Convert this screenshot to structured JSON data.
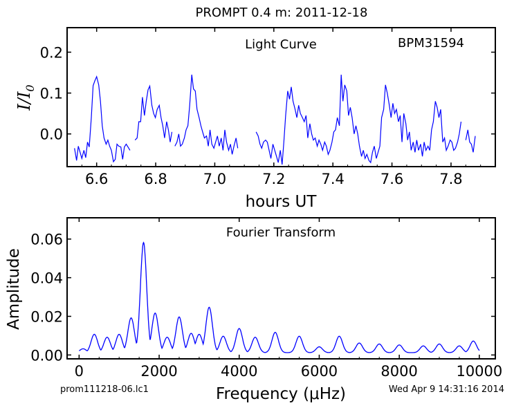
{
  "page": {
    "suptitle": "PROMPT 0.4 m:  2011-12-18",
    "footer_left": "prom111218-06.lc1",
    "footer_right": "Wed Apr  9 14:31:16 2014"
  },
  "colors": {
    "line": "#0000ff",
    "axes": "#000000",
    "background": "#ffffff"
  },
  "chart_data": [
    {
      "type": "line",
      "annotation": "Light Curve",
      "star": "BPM31594",
      "xlabel": "hours UT",
      "ylabel": "I/I₀",
      "xlim": [
        6.5,
        7.95
      ],
      "ylim": [
        -0.08,
        0.26
      ],
      "xticks": [
        6.6,
        6.8,
        7.0,
        7.2,
        7.4,
        7.6,
        7.8
      ],
      "xtick_labels": [
        "6.6",
        "6.8",
        "7.0",
        "7.2",
        "7.4",
        "7.6",
        "7.8"
      ],
      "yticks": [
        0.0,
        0.1,
        0.2
      ],
      "ytick_labels": [
        "0.0",
        "0.1",
        "0.2"
      ],
      "grid": false,
      "segments": [
        {
          "x": [
            6.525,
            6.532,
            6.538,
            6.544,
            6.55,
            6.557,
            6.563,
            6.569,
            6.575,
            6.582,
            6.588,
            6.594,
            6.6,
            6.607,
            6.613,
            6.619,
            6.625,
            6.632,
            6.638,
            6.644,
            6.65,
            6.657,
            6.663,
            6.669,
            6.675,
            6.682,
            6.688,
            6.694,
            6.7,
            6.707,
            6.713
          ],
          "y": [
            -0.035,
            -0.065,
            -0.03,
            -0.045,
            -0.06,
            -0.04,
            -0.058,
            -0.02,
            -0.032,
            0.04,
            0.118,
            0.13,
            0.14,
            0.12,
            0.08,
            0.02,
            -0.01,
            -0.025,
            -0.015,
            -0.03,
            -0.04,
            -0.068,
            -0.062,
            -0.025,
            -0.03,
            -0.032,
            -0.062,
            -0.032,
            -0.025,
            -0.033,
            -0.04
          ]
        },
        {
          "x": [
            6.73,
            6.737,
            6.743,
            6.749,
            6.755,
            6.762,
            6.768,
            6.774,
            6.78,
            6.787,
            6.793,
            6.799,
            6.805,
            6.812,
            6.818,
            6.824,
            6.83,
            6.837,
            6.843,
            6.849,
            6.855
          ],
          "y": [
            -0.015,
            -0.01,
            0.03,
            0.03,
            0.09,
            0.045,
            0.08,
            0.108,
            0.117,
            0.07,
            0.05,
            0.04,
            0.06,
            0.07,
            0.04,
            0.02,
            -0.01,
            0.03,
            0.01,
            -0.02,
            0.005
          ]
        },
        {
          "x": [
            6.865,
            6.872,
            6.878,
            6.884,
            6.89,
            6.897,
            6.903,
            6.909,
            6.915,
            6.922,
            6.928,
            6.934,
            6.94,
            6.947,
            6.953,
            6.959,
            6.965,
            6.972,
            6.978,
            6.984,
            6.99,
            6.997,
            7.003,
            7.009,
            7.015,
            7.022,
            7.028,
            7.034,
            7.04,
            7.047,
            7.053,
            7.059,
            7.065,
            7.072,
            7.078
          ],
          "y": [
            -0.03,
            -0.02,
            0.0,
            -0.03,
            -0.025,
            -0.01,
            0.01,
            0.02,
            0.07,
            0.145,
            0.11,
            0.105,
            0.06,
            0.04,
            0.02,
            0.005,
            -0.01,
            -0.005,
            -0.03,
            0.01,
            -0.025,
            -0.035,
            -0.02,
            -0.005,
            -0.03,
            -0.01,
            -0.04,
            0.01,
            -0.02,
            -0.04,
            -0.025,
            -0.05,
            -0.03,
            -0.01,
            -0.035
          ]
        },
        {
          "x": [
            7.14,
            7.147,
            7.153,
            7.159,
            7.165,
            7.172,
            7.178,
            7.184,
            7.19,
            7.197,
            7.203,
            7.209,
            7.215,
            7.222,
            7.228,
            7.234,
            7.24,
            7.247,
            7.253,
            7.259,
            7.265,
            7.272,
            7.278,
            7.284,
            7.29,
            7.297,
            7.303,
            7.309,
            7.315,
            7.322,
            7.328,
            7.334,
            7.34,
            7.347,
            7.353,
            7.359,
            7.365,
            7.372,
            7.378,
            7.384,
            7.39,
            7.397,
            7.403,
            7.409,
            7.415,
            7.422,
            7.428,
            7.434,
            7.44,
            7.447,
            7.453,
            7.459,
            7.465,
            7.472,
            7.478,
            7.484,
            7.49,
            7.497,
            7.503,
            7.509,
            7.515,
            7.522,
            7.528,
            7.534,
            7.54,
            7.547,
            7.553,
            7.559,
            7.565,
            7.572,
            7.578,
            7.584,
            7.59,
            7.597,
            7.603,
            7.609,
            7.615,
            7.622,
            7.628,
            7.634,
            7.64,
            7.647,
            7.653,
            7.659,
            7.665,
            7.672,
            7.678,
            7.684,
            7.69,
            7.697,
            7.703,
            7.709,
            7.715,
            7.722,
            7.728,
            7.734,
            7.74,
            7.747,
            7.753,
            7.759,
            7.765,
            7.772,
            7.778,
            7.784,
            7.79,
            7.797,
            7.803,
            7.809,
            7.815,
            7.822,
            7.828,
            7.834
          ],
          "y": [
            0.005,
            -0.005,
            -0.025,
            -0.035,
            -0.02,
            -0.015,
            -0.02,
            -0.04,
            -0.06,
            -0.025,
            -0.04,
            -0.055,
            -0.07,
            -0.04,
            -0.075,
            -0.02,
            0.045,
            0.105,
            0.085,
            0.115,
            0.08,
            0.06,
            0.04,
            0.07,
            0.05,
            0.04,
            0.03,
            0.045,
            -0.01,
            0.025,
            0.0,
            -0.015,
            -0.01,
            -0.03,
            -0.015,
            -0.025,
            -0.04,
            -0.02,
            -0.03,
            -0.05,
            -0.04,
            -0.02,
            0.005,
            0.01,
            0.04,
            0.02,
            0.145,
            0.08,
            0.12,
            0.105,
            0.045,
            0.065,
            0.04,
            0.0,
            0.02,
            0.0,
            -0.03,
            -0.055,
            -0.04,
            -0.06,
            -0.05,
            -0.065,
            -0.07,
            -0.045,
            -0.03,
            -0.06,
            -0.045,
            -0.03,
            0.04,
            0.06,
            0.12,
            0.1,
            0.075,
            0.04,
            0.075,
            0.05,
            0.06,
            0.03,
            0.045,
            -0.02,
            0.05,
            0.025,
            -0.015,
            0.005,
            -0.04,
            -0.02,
            -0.045,
            -0.015,
            -0.04,
            -0.025,
            -0.055,
            -0.02,
            -0.04,
            -0.03,
            -0.04,
            0.01,
            0.03,
            0.08,
            0.065,
            0.04,
            0.06,
            -0.02,
            -0.01,
            -0.04,
            -0.03,
            -0.015,
            -0.02,
            -0.04,
            -0.035,
            -0.02,
            0.0,
            0.03
          ]
        },
        {
          "x": [
            7.85,
            7.857,
            7.863,
            7.869,
            7.875,
            7.882
          ],
          "y": [
            -0.015,
            0.01,
            -0.02,
            -0.025,
            -0.045,
            -0.005
          ]
        }
      ]
    },
    {
      "type": "line",
      "annotation": "Fourier Transform",
      "xlabel": "Frequency (μHz)",
      "ylabel": "Amplitude",
      "xlim": [
        -300,
        10400
      ],
      "ylim": [
        -0.002,
        0.071
      ],
      "xticks": [
        0,
        2000,
        4000,
        6000,
        8000,
        10000
      ],
      "xtick_labels": [
        "0",
        "2000",
        "4000",
        "6000",
        "8000",
        "10000"
      ],
      "yticks": [
        0.0,
        0.02,
        0.04,
        0.06
      ],
      "ytick_labels": [
        "0.00",
        "0.02",
        "0.04",
        "0.06"
      ],
      "grid": false,
      "peaks": [
        {
          "frequency": 100,
          "amplitude": 0.002
        },
        {
          "frequency": 380,
          "amplitude": 0.0095
        },
        {
          "frequency": 700,
          "amplitude": 0.008
        },
        {
          "frequency": 1000,
          "amplitude": 0.0095
        },
        {
          "frequency": 1300,
          "amplitude": 0.018
        },
        {
          "frequency": 1610,
          "amplitude": 0.057
        },
        {
          "frequency": 1900,
          "amplitude": 0.0205
        },
        {
          "frequency": 2200,
          "amplitude": 0.008
        },
        {
          "frequency": 2500,
          "amplitude": 0.0185
        },
        {
          "frequency": 2800,
          "amplitude": 0.01
        },
        {
          "frequency": 3000,
          "amplitude": 0.0095
        },
        {
          "frequency": 3250,
          "amplitude": 0.0235
        },
        {
          "frequency": 3600,
          "amplitude": 0.0085
        },
        {
          "frequency": 4000,
          "amplitude": 0.0125
        },
        {
          "frequency": 4400,
          "amplitude": 0.008
        },
        {
          "frequency": 4900,
          "amplitude": 0.0105
        },
        {
          "frequency": 5500,
          "amplitude": 0.0085
        },
        {
          "frequency": 6000,
          "amplitude": 0.003
        },
        {
          "frequency": 6500,
          "amplitude": 0.0085
        },
        {
          "frequency": 7000,
          "amplitude": 0.005
        },
        {
          "frequency": 7500,
          "amplitude": 0.0045
        },
        {
          "frequency": 8000,
          "amplitude": 0.004
        },
        {
          "frequency": 8600,
          "amplitude": 0.0035
        },
        {
          "frequency": 9000,
          "amplitude": 0.0045
        },
        {
          "frequency": 9500,
          "amplitude": 0.0035
        },
        {
          "frequency": 9850,
          "amplitude": 0.006
        }
      ]
    }
  ]
}
